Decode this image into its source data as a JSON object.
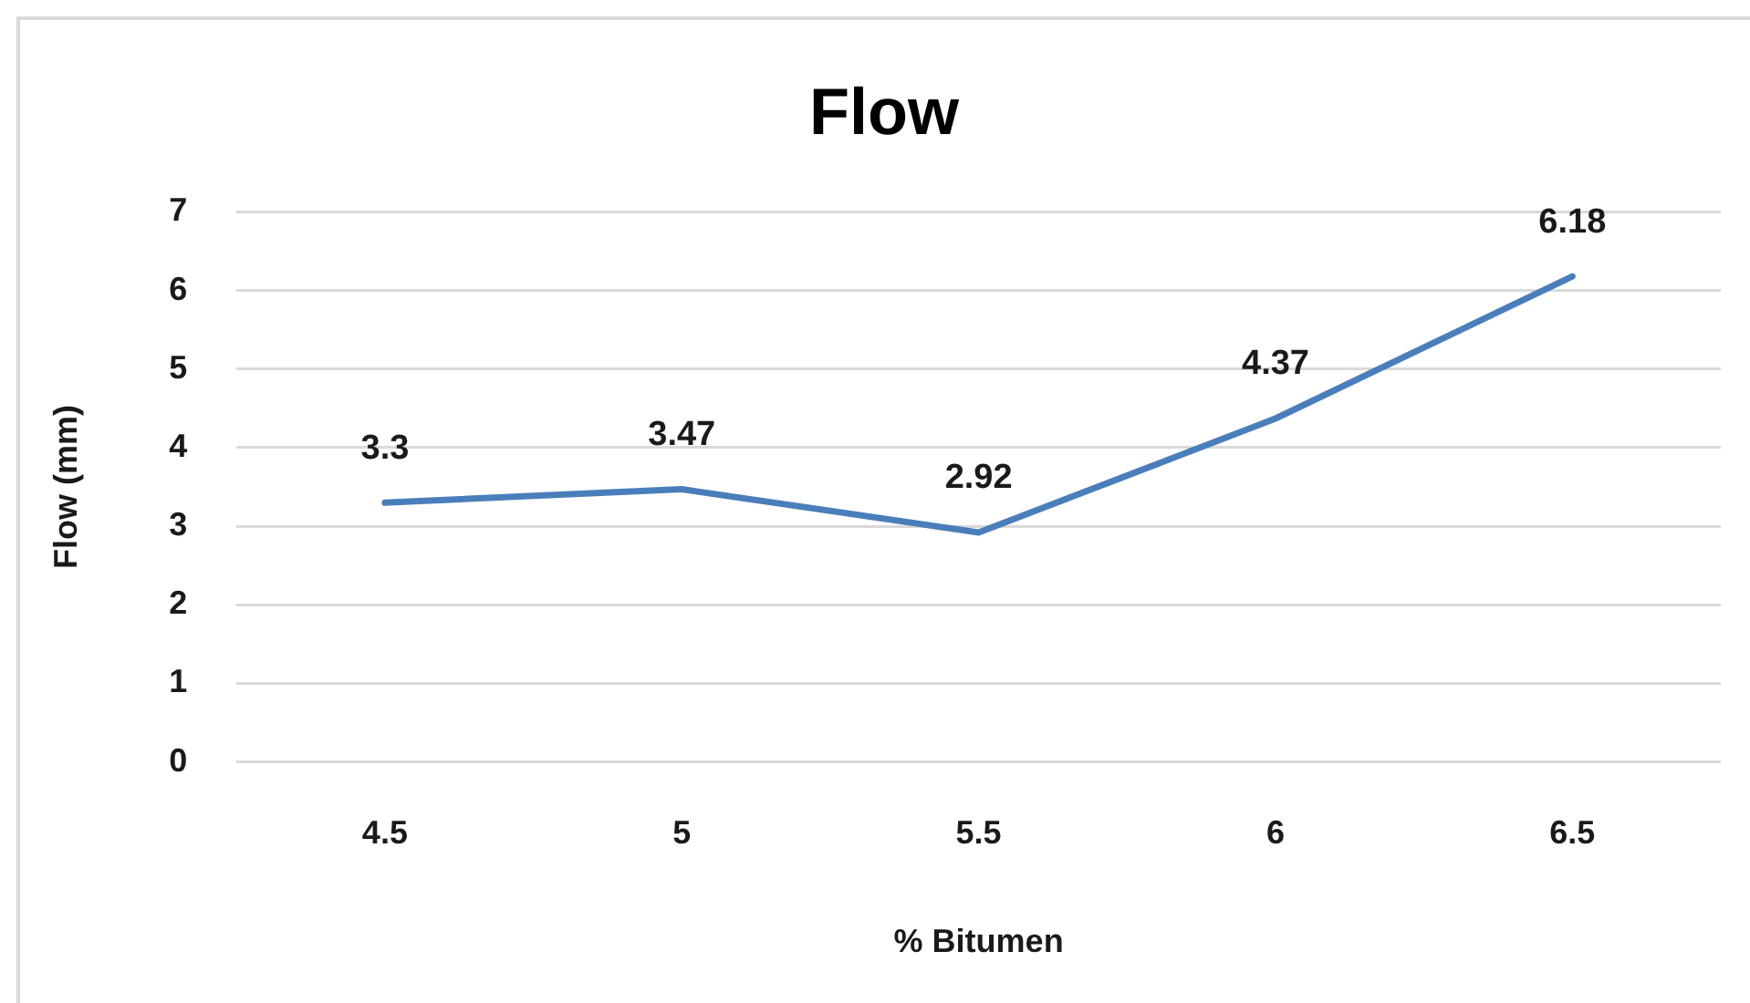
{
  "chart_data": {
    "type": "line",
    "title": "Flow",
    "xlabel": "% Bitumen",
    "ylabel": "Flow (mm)",
    "categories": [
      "4.5",
      "5",
      "5.5",
      "6",
      "6.5"
    ],
    "values": [
      3.3,
      3.47,
      2.92,
      4.37,
      6.18
    ],
    "color": "#4a7ebb",
    "ylim": [
      0,
      7
    ],
    "yticks": [
      0,
      1,
      2,
      3,
      4,
      5,
      6,
      7
    ],
    "grid": "y",
    "data_labels": true,
    "marker": "none"
  }
}
